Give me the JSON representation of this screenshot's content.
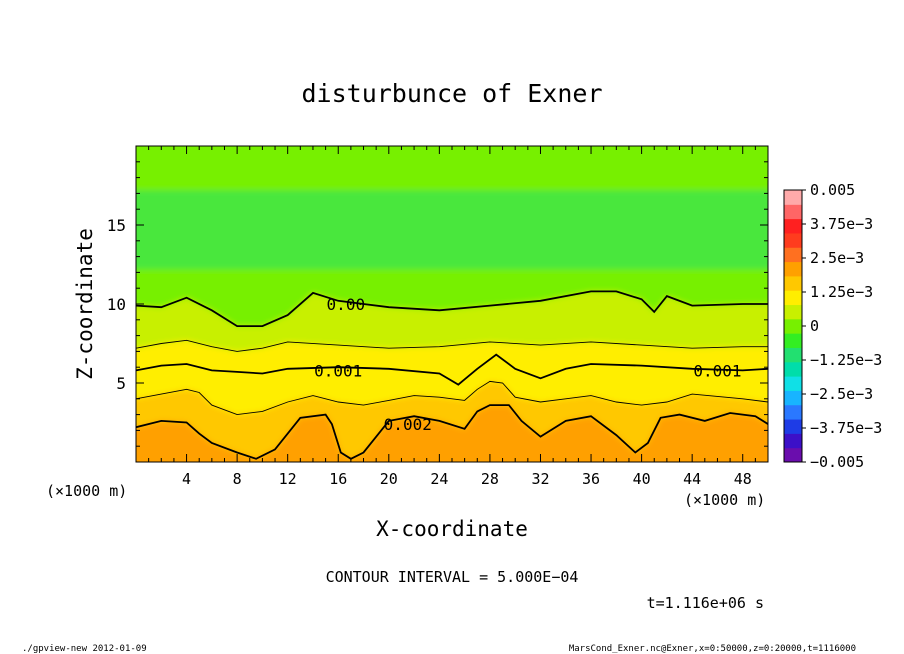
{
  "chart_data": {
    "type": "heatmap",
    "title": "disturbunce of Exner",
    "xlabel": "X-coordinate",
    "ylabel": "Z-coordinate",
    "x_unit": "(×1000 m)",
    "y_unit": "(×1000 m)",
    "xlim": [
      0,
      50
    ],
    "ylim": [
      0,
      20
    ],
    "x_ticks": [
      4,
      8,
      12,
      16,
      20,
      24,
      28,
      32,
      36,
      40,
      44,
      48
    ],
    "y_ticks": [
      5,
      10,
      15
    ],
    "colorbar": {
      "min": -0.005,
      "max": 0.005,
      "tick_values": [
        0.005,
        0.00375,
        0.0025,
        0.00125,
        0,
        -0.00125,
        -0.0025,
        -0.00375,
        -0.005
      ],
      "tick_labels": [
        "0.005",
        "3.75e−3",
        "2.5e−3",
        "1.25e−3",
        "0",
        "−1.25e−3",
        "−2.5e−3",
        "−3.75e−3",
        "−0.005"
      ],
      "colors": [
        "#6a0dad",
        "#3c10c8",
        "#1e3ce6",
        "#2a78ff",
        "#18b4ff",
        "#10e0e6",
        "#00ddaa",
        "#22e070",
        "#33ee22",
        "#77f000",
        "#c8f000",
        "#ffee00",
        "#ffc800",
        "#ffa000",
        "#ff7020",
        "#ff3c1e",
        "#ff2020",
        "#ff6666",
        "#ffaaaa"
      ]
    },
    "contour_labels": [
      {
        "text": "0.00",
        "x": 16.6,
        "z": 10.0
      },
      {
        "text": "0.001",
        "x": 16.0,
        "z": 5.8
      },
      {
        "text": "0.001",
        "x": 46.0,
        "z": 5.8
      },
      {
        "text": "0.002",
        "x": 21.5,
        "z": 2.4
      }
    ],
    "contour_levels": [
      {
        "value": 0.0,
        "bold": true,
        "z": [
          [
            0,
            9.9
          ],
          [
            2,
            9.8
          ],
          [
            4,
            10.4
          ],
          [
            6,
            9.6
          ],
          [
            8,
            8.6
          ],
          [
            10,
            8.6
          ],
          [
            12,
            9.3
          ],
          [
            14,
            10.7
          ],
          [
            16,
            10.2
          ],
          [
            18,
            10.0
          ],
          [
            20,
            9.8
          ],
          [
            24,
            9.6
          ],
          [
            28,
            9.9
          ],
          [
            32,
            10.2
          ],
          [
            36,
            10.8
          ],
          [
            38,
            10.8
          ],
          [
            40,
            10.3
          ],
          [
            41,
            9.5
          ],
          [
            42,
            10.5
          ],
          [
            44,
            9.9
          ],
          [
            48,
            10.0
          ],
          [
            50,
            10.0
          ]
        ]
      },
      {
        "value": 0.0005,
        "bold": false,
        "z": [
          [
            0,
            7.2
          ],
          [
            2,
            7.5
          ],
          [
            4,
            7.7
          ],
          [
            6,
            7.3
          ],
          [
            8,
            7.0
          ],
          [
            10,
            7.2
          ],
          [
            12,
            7.6
          ],
          [
            16,
            7.4
          ],
          [
            20,
            7.2
          ],
          [
            24,
            7.3
          ],
          [
            28,
            7.6
          ],
          [
            32,
            7.4
          ],
          [
            36,
            7.6
          ],
          [
            40,
            7.4
          ],
          [
            44,
            7.2
          ],
          [
            48,
            7.3
          ],
          [
            50,
            7.3
          ]
        ]
      },
      {
        "value": 0.001,
        "bold": true,
        "z": [
          [
            0,
            5.8
          ],
          [
            2,
            6.1
          ],
          [
            4,
            6.2
          ],
          [
            6,
            5.8
          ],
          [
            8,
            5.7
          ],
          [
            10,
            5.6
          ],
          [
            12,
            5.9
          ],
          [
            16,
            6.0
          ],
          [
            20,
            5.9
          ],
          [
            24,
            5.6
          ],
          [
            25.5,
            4.9
          ],
          [
            27,
            5.9
          ],
          [
            28.5,
            6.8
          ],
          [
            30,
            5.9
          ],
          [
            32,
            5.3
          ],
          [
            34,
            5.9
          ],
          [
            36,
            6.2
          ],
          [
            40,
            6.1
          ],
          [
            44,
            5.9
          ],
          [
            48,
            5.8
          ],
          [
            50,
            5.9
          ]
        ]
      },
      {
        "value": 0.0015,
        "bold": false,
        "z": [
          [
            0,
            4.0
          ],
          [
            2,
            4.3
          ],
          [
            4,
            4.6
          ],
          [
            5,
            4.4
          ],
          [
            6,
            3.6
          ],
          [
            8,
            3.0
          ],
          [
            10,
            3.2
          ],
          [
            12,
            3.8
          ],
          [
            14,
            4.2
          ],
          [
            16,
            3.8
          ],
          [
            18,
            3.6
          ],
          [
            20,
            3.9
          ],
          [
            22,
            4.2
          ],
          [
            24,
            4.1
          ],
          [
            26,
            3.9
          ],
          [
            27,
            4.6
          ],
          [
            28,
            5.1
          ],
          [
            29,
            5.0
          ],
          [
            30,
            4.1
          ],
          [
            32,
            3.8
          ],
          [
            34,
            4.0
          ],
          [
            36,
            4.2
          ],
          [
            38,
            3.8
          ],
          [
            40,
            3.6
          ],
          [
            42,
            3.8
          ],
          [
            44,
            4.3
          ],
          [
            48,
            4.0
          ],
          [
            50,
            3.8
          ]
        ]
      },
      {
        "value": 0.002,
        "bold": true,
        "z": [
          [
            0,
            2.2
          ],
          [
            2,
            2.6
          ],
          [
            4,
            2.5
          ],
          [
            5,
            1.8
          ],
          [
            6,
            1.2
          ],
          [
            8,
            0.6
          ],
          [
            9.5,
            0.2
          ],
          [
            11,
            0.8
          ],
          [
            12,
            1.8
          ],
          [
            13,
            2.8
          ],
          [
            15,
            3.0
          ],
          [
            15.5,
            2.4
          ],
          [
            16.2,
            0.6
          ],
          [
            17,
            0.2
          ],
          [
            18,
            0.6
          ],
          [
            19,
            1.6
          ],
          [
            20,
            2.6
          ],
          [
            22,
            2.9
          ],
          [
            24,
            2.6
          ],
          [
            26,
            2.1
          ],
          [
            27,
            3.2
          ],
          [
            28,
            3.6
          ],
          [
            29.5,
            3.6
          ],
          [
            30.5,
            2.6
          ],
          [
            32,
            1.6
          ],
          [
            34,
            2.6
          ],
          [
            36,
            2.9
          ],
          [
            38,
            1.7
          ],
          [
            39.5,
            0.6
          ],
          [
            40.5,
            1.2
          ],
          [
            41.5,
            2.8
          ],
          [
            43,
            3.0
          ],
          [
            45,
            2.6
          ],
          [
            47,
            3.1
          ],
          [
            49,
            2.9
          ],
          [
            50,
            2.4
          ]
        ]
      }
    ]
  },
  "annotations": {
    "contour_interval": "CONTOUR INTERVAL = 5.000E−04",
    "time": "t=1.116e+06 s",
    "footer_left": "./gpview-new  2012-01-09",
    "footer_right": "MarsCond_Exner.nc@Exner,x=0:50000,z=0:20000,t=1116000"
  }
}
